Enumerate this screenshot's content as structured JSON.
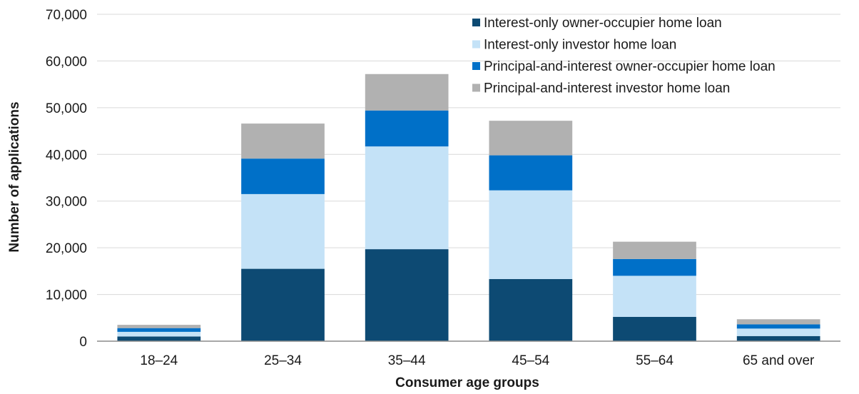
{
  "chart_data": {
    "type": "bar",
    "stacked": true,
    "xlabel": "Consumer age groups",
    "ylabel": "Number of applications",
    "ylim": [
      0,
      70000
    ],
    "yticks": [
      0,
      10000,
      20000,
      30000,
      40000,
      50000,
      60000,
      70000
    ],
    "ytick_labels": [
      "0",
      "10,000",
      "20,000",
      "30,000",
      "40,000",
      "50,000",
      "60,000",
      "70,000"
    ],
    "grid": "horizontal",
    "legend_position": "top-right",
    "categories": [
      "18–24",
      "25–34",
      "35–44",
      "45–54",
      "55–64",
      "65 and over"
    ],
    "series": [
      {
        "name": "Interest-only owner-occupier home loan",
        "color": "#0d4a73",
        "values": [
          1000,
          15500,
          19700,
          13300,
          5200,
          1100
        ]
      },
      {
        "name": "Interest-only investor home loan",
        "color": "#c4e2f7",
        "values": [
          1000,
          16000,
          22000,
          19000,
          8800,
          1600
        ]
      },
      {
        "name": "Principal-and-interest owner-occupier home loan",
        "color": "#0070c8",
        "values": [
          800,
          7600,
          7700,
          7500,
          3600,
          900
        ]
      },
      {
        "name": "Principal-and-interest investor home loan",
        "color": "#b1b1b1",
        "values": [
          700,
          7500,
          7800,
          7400,
          3700,
          1100
        ]
      }
    ]
  }
}
